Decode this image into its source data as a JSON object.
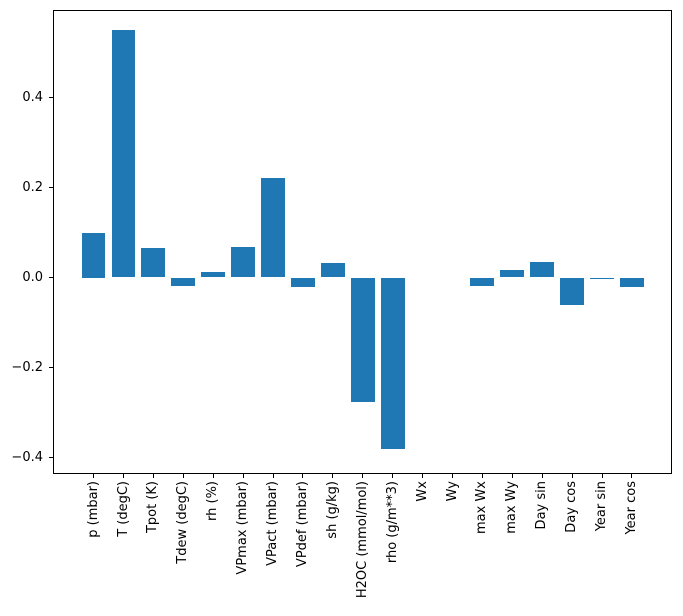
{
  "figure": {
    "background": "#ffffff",
    "bar_color": "#1f77b4",
    "axis_color": "#000000",
    "text_color": "#000000"
  },
  "chart_data": {
    "type": "bar",
    "title": "",
    "xlabel": "",
    "ylabel": "",
    "grid": false,
    "legend": null,
    "categories": [
      "p (mbar)",
      "T (degC)",
      "Tpot (K)",
      "Tdew (degC)",
      "rh (%)",
      "VPmax (mbar)",
      "VPact (mbar)",
      "VPdef (mbar)",
      "sh (g/kg)",
      "H2OC (mmol/mol)",
      "rho (g/m**3)",
      "Wx",
      "Wy",
      "max Wx",
      "max Wy",
      "Day sin",
      "Day cos",
      "Year sin",
      "Year cos"
    ],
    "values": [
      0.1,
      0.549,
      0.065,
      -0.018,
      0.013,
      0.068,
      0.221,
      -0.021,
      0.032,
      -0.277,
      -0.382,
      0.0,
      0.0,
      -0.019,
      0.016,
      0.035,
      -0.06,
      -0.003,
      -0.02
    ],
    "ytick_values": [
      0.4,
      0.2,
      0.0,
      -0.2,
      -0.4
    ],
    "ytick_labels": [
      "0.4",
      "0.2",
      "0.0",
      "−0.2",
      "−0.4"
    ],
    "ylim": [
      -0.4356,
      0.5944
    ],
    "xlim": [
      -1.34,
      19.34
    ],
    "bar_width": 0.8,
    "x_tick_rotation": 90
  }
}
